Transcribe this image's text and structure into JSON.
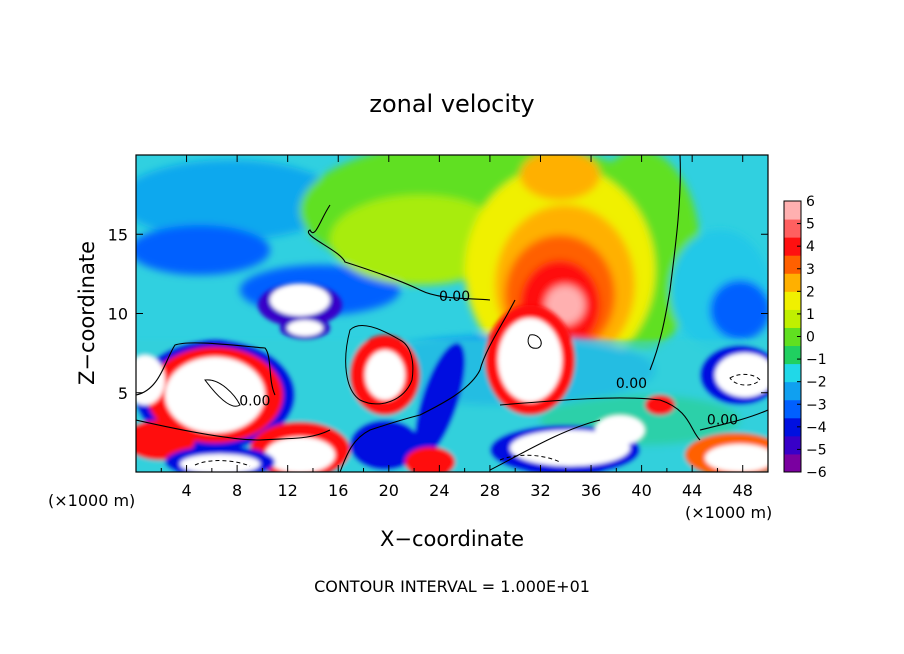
{
  "chart_data": {
    "type": "heatmap",
    "title": "zonal velocity",
    "xlabel": "X−coordinate",
    "ylabel": "Z−coordinate",
    "x_unit_left": "(×1000 m)",
    "x_unit_right": "(×1000 m)",
    "footer": "CONTOUR INTERVAL = 1.000E+01",
    "xlim": [
      0,
      50
    ],
    "ylim": [
      0,
      20
    ],
    "x_ticks": [
      4,
      8,
      12,
      16,
      20,
      24,
      28,
      32,
      36,
      40,
      44,
      48
    ],
    "x_tick_labels": [
      "4",
      "8",
      "12",
      "16",
      "20",
      "24",
      "28",
      "32",
      "36",
      "40",
      "44",
      "48"
    ],
    "y_ticks": [
      5,
      10,
      15
    ],
    "y_tick_labels": [
      "5",
      "10",
      "15"
    ],
    "colorbar": {
      "min": -6,
      "max": 6,
      "tick_values": [
        6,
        5,
        4,
        3,
        2,
        1,
        0,
        -1,
        -2,
        -3,
        -4,
        -5,
        -6
      ],
      "tick_labels": [
        "6",
        "5",
        "4",
        "3",
        "2",
        "1",
        "0",
        "−1",
        "−2",
        "−3",
        "−4",
        "−5",
        "−6"
      ],
      "colors": [
        "#7a00a0",
        "#3800c8",
        "#0010e0",
        "#0060ff",
        "#10a0f0",
        "#20d8e8",
        "#20d060",
        "#60e020",
        "#c0f000",
        "#f0f000",
        "#ffb000",
        "#ff6000",
        "#ff1010",
        "#ff6060",
        "#ffb0b0"
      ]
    },
    "contour_labels": [
      {
        "text": "0.00",
        "x": 9.4,
        "y": 4.5
      },
      {
        "text": "0.00",
        "x": 25.2,
        "y": 11.1
      },
      {
        "text": "0.00",
        "x": 39.2,
        "y": 5.6
      },
      {
        "text": "0.00",
        "x": 46.4,
        "y": 3.3
      }
    ]
  }
}
